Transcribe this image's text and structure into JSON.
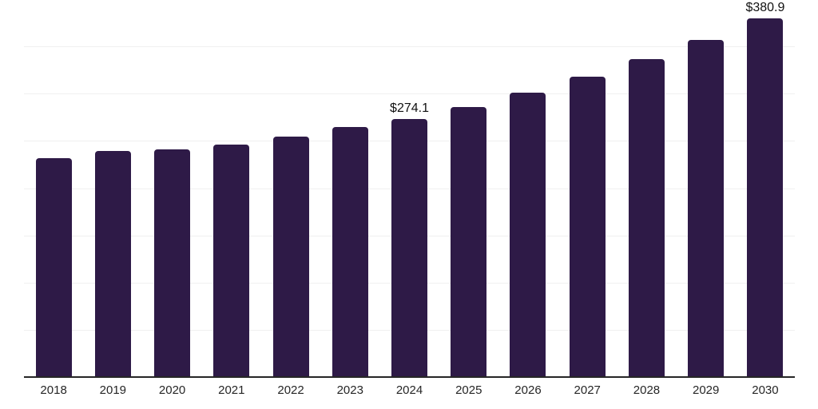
{
  "chart_data": {
    "type": "bar",
    "title": "",
    "xlabel": "",
    "ylabel": "",
    "categories": [
      "2018",
      "2019",
      "2020",
      "2021",
      "2022",
      "2023",
      "2024",
      "2025",
      "2026",
      "2027",
      "2028",
      "2029",
      "2030"
    ],
    "values": [
      232.3,
      239.9,
      241.6,
      247.1,
      255.6,
      265.7,
      274.1,
      286.8,
      302.0,
      318.8,
      337.7,
      358.0,
      380.9
    ],
    "value_labels": {
      "2024": "$274.1",
      "2030": "$380.9"
    },
    "ylim": [
      0,
      400
    ],
    "grid": {
      "show": true,
      "y_step": 50,
      "color": "#f0f0f0"
    },
    "legend": {
      "show": false
    },
    "colors": {
      "bar": "#2e1a47",
      "axis_line": "#262626",
      "tick_label": "#262626",
      "value_label": "#111111",
      "background": "#ffffff"
    }
  }
}
